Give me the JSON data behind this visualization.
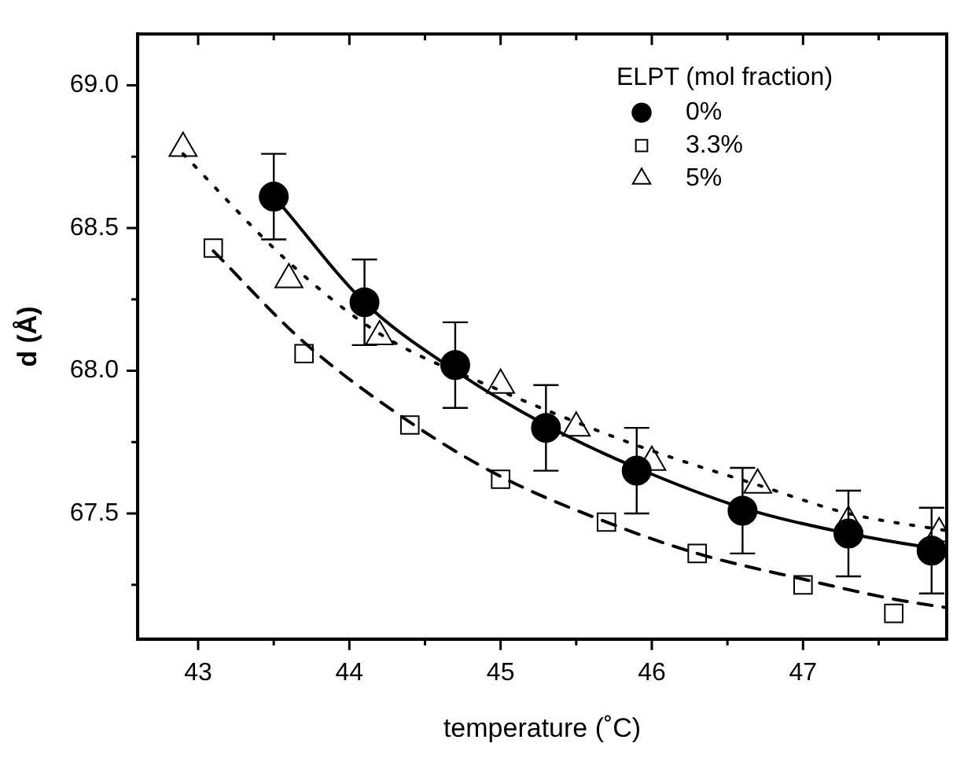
{
  "chart_data": {
    "type": "scatter",
    "xlabel": "temperature (˚C)",
    "ylabel": "d (Å)",
    "legend_title": "ELPT (mol fraction)",
    "legend": "top right",
    "grid": false,
    "xlim": [
      42.6,
      47.95
    ],
    "xticks": [
      43,
      {
        "value": 43.5,
        "label": null
      },
      44,
      {
        "value": 44.5,
        "label": null
      },
      45,
      {
        "value": 45.5,
        "label": null
      },
      46,
      {
        "value": 46.5,
        "label": null
      },
      47,
      {
        "value": 47.5,
        "label": null
      }
    ],
    "ylim": [
      67.06,
      69.18
    ],
    "yticks": [
      {
        "value": 67.25,
        "label": null
      },
      67.5,
      {
        "value": 67.75,
        "label": null
      },
      {
        "value": 68,
        "label": "68.0"
      },
      {
        "value": 68.25,
        "label": null
      },
      68.5,
      {
        "value": 68.75,
        "label": null
      },
      {
        "value": 69,
        "label": "69.0"
      }
    ],
    "series": [
      {
        "name": "0%",
        "marker": "circle",
        "color": "#000000",
        "x": [
          43.5,
          44.1,
          44.7,
          45.3,
          45.9,
          46.6,
          47.3,
          47.85
        ],
        "values": [
          68.61,
          68.24,
          68.02,
          67.8,
          67.65,
          67.51,
          67.43,
          67.37
        ],
        "errors": [
          0.15,
          0.15,
          0.15,
          0.15,
          0.15,
          0.15,
          0.15,
          0.15
        ]
      },
      {
        "name": "3.3%",
        "marker": "square",
        "color": "#000000",
        "x": [
          43.1,
          43.7,
          44.4,
          45.0,
          45.7,
          46.3,
          47.0,
          47.6
        ],
        "values": [
          68.43,
          68.06,
          67.81,
          67.62,
          67.47,
          67.36,
          67.25,
          67.15
        ]
      },
      {
        "name": "5%",
        "marker": "triangle",
        "color": "#000000",
        "x": [
          42.9,
          43.6,
          44.2,
          45.0,
          45.5,
          46.0,
          46.7,
          47.3,
          47.9
        ],
        "values": [
          68.78,
          68.32,
          68.12,
          67.95,
          67.8,
          67.68,
          67.6,
          67.47,
          67.43
        ]
      },
      {
        "type": "line",
        "marker": "none",
        "line_style": "solid",
        "color": "#000000",
        "x": [
          43.55,
          44.1,
          44.7,
          45.3,
          45.9,
          46.6,
          47.3,
          47.95
        ],
        "values": [
          68.58,
          68.24,
          68.0,
          67.81,
          67.66,
          67.52,
          67.43,
          67.37
        ]
      },
      {
        "type": "line",
        "marker": "none",
        "line_style": "dashed",
        "color": "#000000",
        "x": [
          43.1,
          43.7,
          44.4,
          45.0,
          45.7,
          46.3,
          47.0,
          47.6,
          47.95
        ],
        "values": [
          68.42,
          68.1,
          67.82,
          67.63,
          67.47,
          67.36,
          67.27,
          67.2,
          67.17
        ]
      },
      {
        "type": "line",
        "marker": "none",
        "line_style": "dotted",
        "color": "#000000",
        "x": [
          42.9,
          43.6,
          44.2,
          45.0,
          45.5,
          46.0,
          46.7,
          47.3,
          47.95
        ],
        "values": [
          68.76,
          68.38,
          68.13,
          67.93,
          67.82,
          67.72,
          67.6,
          67.5,
          67.44
        ]
      }
    ]
  }
}
